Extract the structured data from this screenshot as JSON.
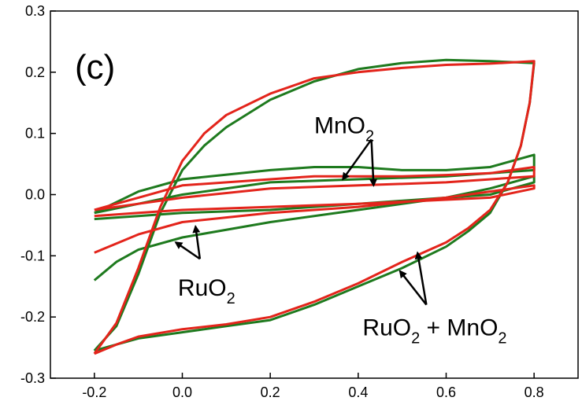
{
  "chart_data": {
    "type": "line",
    "title": "",
    "xlabel": "",
    "ylabel": "",
    "xlim": [
      -0.3,
      0.9
    ],
    "ylim": [
      -0.3,
      0.3
    ],
    "xticks": [
      -0.2,
      0.0,
      0.2,
      0.4,
      0.6,
      0.8
    ],
    "yticks": [
      -0.3,
      -0.2,
      -0.1,
      0.0,
      0.1,
      0.2,
      0.3
    ],
    "xtick_labels": [
      "-0.2",
      "0.0",
      "0.2",
      "0.4",
      "0.6",
      "0.8"
    ],
    "ytick_labels": [
      "-0.3",
      "-0.2",
      "-0.1",
      "0.0",
      "0.1",
      "0.2",
      "0.3"
    ],
    "grid": false,
    "legend": "none",
    "panel_label": "(c)",
    "colors": {
      "series_a": "#1e7a1e",
      "series_b": "#e3241b",
      "axis": "#000000"
    },
    "series": [
      {
        "color": "#1e7a1e",
        "curves": [
          {
            "group": "RuO2 + MnO2",
            "points": [
              [
                -0.2,
                -0.255
              ],
              [
                -0.15,
                -0.215
              ],
              [
                -0.1,
                -0.13
              ],
              [
                -0.05,
                -0.03
              ],
              [
                0.0,
                0.04
              ],
              [
                0.05,
                0.08
              ],
              [
                0.1,
                0.11
              ],
              [
                0.2,
                0.155
              ],
              [
                0.3,
                0.185
              ],
              [
                0.4,
                0.205
              ],
              [
                0.5,
                0.215
              ],
              [
                0.6,
                0.22
              ],
              [
                0.7,
                0.218
              ],
              [
                0.8,
                0.215
              ],
              [
                0.79,
                0.15
              ],
              [
                0.77,
                0.08
              ],
              [
                0.74,
                0.02
              ],
              [
                0.7,
                -0.03
              ],
              [
                0.65,
                -0.06
              ],
              [
                0.6,
                -0.085
              ],
              [
                0.5,
                -0.12
              ],
              [
                0.4,
                -0.15
              ],
              [
                0.3,
                -0.18
              ],
              [
                0.2,
                -0.205
              ],
              [
                0.1,
                -0.215
              ],
              [
                0.0,
                -0.225
              ],
              [
                -0.1,
                -0.235
              ],
              [
                -0.15,
                -0.245
              ],
              [
                -0.2,
                -0.255
              ]
            ]
          },
          {
            "group": "RuO2",
            "points": [
              [
                -0.2,
                -0.14
              ],
              [
                -0.15,
                -0.11
              ],
              [
                -0.1,
                -0.09
              ],
              [
                0.0,
                -0.07
              ],
              [
                0.2,
                -0.045
              ],
              [
                0.4,
                -0.025
              ],
              [
                0.6,
                -0.005
              ],
              [
                0.7,
                0.01
              ],
              [
                0.8,
                0.03
              ],
              [
                0.8,
                0.02
              ],
              [
                0.7,
                0.0
              ],
              [
                0.4,
                -0.015
              ],
              [
                0.2,
                -0.025
              ],
              [
                0.0,
                -0.03
              ],
              [
                -0.1,
                -0.035
              ],
              [
                -0.2,
                -0.04
              ]
            ]
          },
          {
            "group": "MnO2",
            "points": [
              [
                -0.2,
                -0.03
              ],
              [
                -0.1,
                0.005
              ],
              [
                0.0,
                0.025
              ],
              [
                0.2,
                0.04
              ],
              [
                0.3,
                0.045
              ],
              [
                0.4,
                0.045
              ],
              [
                0.5,
                0.04
              ],
              [
                0.6,
                0.04
              ],
              [
                0.7,
                0.045
              ],
              [
                0.8,
                0.065
              ],
              [
                0.8,
                0.04
              ],
              [
                0.6,
                0.03
              ],
              [
                0.4,
                0.025
              ],
              [
                0.2,
                0.02
              ],
              [
                0.0,
                0.0
              ],
              [
                -0.1,
                -0.015
              ],
              [
                -0.2,
                -0.03
              ]
            ]
          }
        ]
      },
      {
        "color": "#e3241b",
        "curves": [
          {
            "group": "RuO2 + MnO2",
            "points": [
              [
                -0.2,
                -0.26
              ],
              [
                -0.15,
                -0.21
              ],
              [
                -0.1,
                -0.12
              ],
              [
                -0.05,
                -0.02
              ],
              [
                0.0,
                0.055
              ],
              [
                0.05,
                0.1
              ],
              [
                0.1,
                0.13
              ],
              [
                0.2,
                0.165
              ],
              [
                0.3,
                0.19
              ],
              [
                0.4,
                0.2
              ],
              [
                0.5,
                0.207
              ],
              [
                0.6,
                0.212
              ],
              [
                0.7,
                0.214
              ],
              [
                0.8,
                0.218
              ],
              [
                0.79,
                0.15
              ],
              [
                0.77,
                0.08
              ],
              [
                0.74,
                0.02
              ],
              [
                0.7,
                -0.025
              ],
              [
                0.65,
                -0.055
              ],
              [
                0.6,
                -0.078
              ],
              [
                0.5,
                -0.11
              ],
              [
                0.4,
                -0.145
              ],
              [
                0.3,
                -0.175
              ],
              [
                0.2,
                -0.2
              ],
              [
                0.1,
                -0.212
              ],
              [
                0.0,
                -0.22
              ],
              [
                -0.1,
                -0.232
              ],
              [
                -0.15,
                -0.245
              ],
              [
                -0.2,
                -0.26
              ]
            ]
          },
          {
            "group": "RuO2",
            "points": [
              [
                -0.2,
                -0.095
              ],
              [
                -0.15,
                -0.08
              ],
              [
                -0.1,
                -0.065
              ],
              [
                0.0,
                -0.045
              ],
              [
                0.2,
                -0.03
              ],
              [
                0.4,
                -0.02
              ],
              [
                0.6,
                -0.005
              ],
              [
                0.7,
                0.005
              ],
              [
                0.8,
                0.015
              ],
              [
                0.8,
                0.01
              ],
              [
                0.7,
                -0.005
              ],
              [
                0.4,
                -0.015
              ],
              [
                0.2,
                -0.02
              ],
              [
                0.0,
                -0.025
              ],
              [
                -0.1,
                -0.03
              ],
              [
                -0.2,
                -0.035
              ]
            ]
          },
          {
            "group": "MnO2",
            "points": [
              [
                -0.2,
                -0.025
              ],
              [
                -0.1,
                -0.005
              ],
              [
                0.0,
                0.015
              ],
              [
                0.2,
                0.025
              ],
              [
                0.3,
                0.03
              ],
              [
                0.4,
                0.03
              ],
              [
                0.5,
                0.03
              ],
              [
                0.6,
                0.032
              ],
              [
                0.7,
                0.035
              ],
              [
                0.8,
                0.045
              ],
              [
                0.8,
                0.03
              ],
              [
                0.6,
                0.02
              ],
              [
                0.4,
                0.015
              ],
              [
                0.2,
                0.01
              ],
              [
                0.0,
                -0.005
              ],
              [
                -0.1,
                -0.015
              ],
              [
                -0.2,
                -0.025
              ]
            ]
          }
        ]
      }
    ],
    "annotations": [
      {
        "id": "mno2",
        "base": "MnO",
        "sub": "2",
        "text_at": [
          0.3,
          0.1
        ],
        "arrow_from": [
          0.43,
          0.09
        ],
        "arrow_to": [
          [
            0.365,
            0.025
          ],
          [
            0.435,
            0.015
          ]
        ]
      },
      {
        "id": "ruo2",
        "base": "RuO",
        "sub": "2",
        "text_at": [
          -0.01,
          -0.165
        ],
        "arrow_from": [
          0.04,
          -0.105
        ],
        "arrow_to": [
          [
            -0.015,
            -0.078
          ],
          [
            0.03,
            -0.052
          ]
        ]
      },
      {
        "id": "ruo2-mno2",
        "base": "RuO",
        "sub": "2",
        "suffix": " + MnO",
        "sub2": "2",
        "text_at": [
          0.41,
          -0.23
        ],
        "arrow_from": [
          0.555,
          -0.18
        ],
        "arrow_to": [
          [
            0.495,
            -0.125
          ],
          [
            0.535,
            -0.095
          ]
        ]
      }
    ]
  }
}
